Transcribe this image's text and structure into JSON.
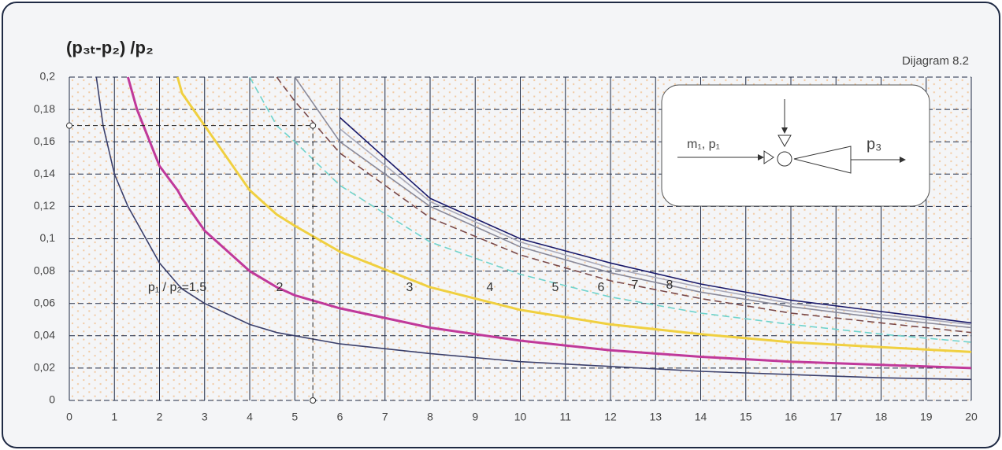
{
  "chart_data": {
    "type": "line",
    "title": "(p₃ₜ-p₂) /p₂",
    "note": "Dijagram 8.2",
    "inset_labels": [
      "m₁, p₁",
      "p₃"
    ],
    "x": [
      0.6,
      0.75,
      1,
      1.3,
      1.5,
      2,
      2.4,
      2.5,
      3,
      4,
      4.6,
      5,
      6,
      8,
      10,
      12,
      14,
      16,
      18,
      20
    ],
    "series": [
      {
        "name": "p₁ / p₂=1,5",
        "color": "#3a3f6b",
        "values": [
          0.2,
          0.17,
          0.14,
          0.12,
          0.11,
          0.085,
          0.072,
          0.069,
          0.06,
          0.047,
          0.042,
          0.04,
          0.035,
          0.029,
          0.024,
          0.021,
          0.018,
          0.016,
          0.014,
          0.013
        ]
      },
      {
        "name": "2",
        "color": "#c0399a",
        "values": [
          null,
          null,
          null,
          0.2,
          0.18,
          0.145,
          0.13,
          0.125,
          0.105,
          0.08,
          0.07,
          0.065,
          0.057,
          0.045,
          0.037,
          0.031,
          0.027,
          0.024,
          0.022,
          0.02
        ]
      },
      {
        "name": "3",
        "color": "#f0d040",
        "values": [
          null,
          null,
          null,
          null,
          null,
          null,
          0.2,
          0.19,
          0.17,
          0.13,
          0.115,
          0.108,
          0.092,
          0.07,
          0.056,
          0.047,
          0.041,
          0.036,
          0.033,
          0.03
        ]
      },
      {
        "name": "4",
        "color": "#6fd3cc",
        "dashed": true,
        "values": [
          null,
          null,
          null,
          null,
          null,
          null,
          null,
          null,
          null,
          0.2,
          0.17,
          0.16,
          0.133,
          0.098,
          0.078,
          0.064,
          0.054,
          0.047,
          0.041,
          0.036
        ]
      },
      {
        "name": "5",
        "color": "#7a4a4a",
        "dashed": true,
        "values": [
          null,
          null,
          null,
          null,
          null,
          null,
          null,
          null,
          null,
          null,
          0.2,
          0.185,
          0.153,
          0.113,
          0.09,
          0.074,
          0.063,
          0.054,
          0.048,
          0.042
        ]
      },
      {
        "name": "6",
        "color": "#8a8a9a",
        "values": [
          null,
          null,
          null,
          null,
          null,
          null,
          null,
          null,
          null,
          null,
          null,
          0.2,
          0.16,
          0.12,
          0.095,
          0.079,
          0.067,
          0.058,
          0.051,
          0.045
        ]
      },
      {
        "name": "7",
        "color": "#a8a8b8",
        "values": [
          null,
          null,
          null,
          null,
          null,
          null,
          null,
          null,
          null,
          null,
          null,
          null,
          0.168,
          0.123,
          0.098,
          0.082,
          0.07,
          0.06,
          0.053,
          0.047
        ]
      },
      {
        "name": "8",
        "color": "#1a1a6a",
        "values": [
          null,
          null,
          null,
          null,
          null,
          null,
          null,
          null,
          null,
          null,
          null,
          null,
          0.175,
          0.125,
          0.1,
          0.085,
          0.072,
          0.062,
          0.055,
          0.048
        ]
      }
    ],
    "example": {
      "x": 5.4,
      "y": 0.17
    },
    "xlim": [
      0,
      20
    ],
    "xticks": [
      0,
      1,
      2,
      3,
      4,
      5,
      6,
      7,
      8,
      9,
      10,
      11,
      12,
      13,
      14,
      15,
      16,
      17,
      18,
      19,
      20
    ],
    "ylim": [
      0,
      0.2
    ],
    "yticks": [
      0,
      {
        "value": 0.02,
        "label": "0,02"
      },
      {
        "value": 0.04,
        "label": "0,04"
      },
      {
        "value": 0.06,
        "label": "0,06"
      },
      {
        "value": 0.08,
        "label": "0,08"
      },
      {
        "value": 0.1,
        "label": "0,1"
      },
      {
        "value": 0.12,
        "label": "0,12"
      },
      {
        "value": 0.14,
        "label": "0,14"
      },
      {
        "value": 0.16,
        "label": "0,16"
      },
      {
        "value": 0.18,
        "label": "0,18"
      },
      {
        "value": 0.2,
        "label": "0,2"
      }
    ],
    "grid": true
  }
}
